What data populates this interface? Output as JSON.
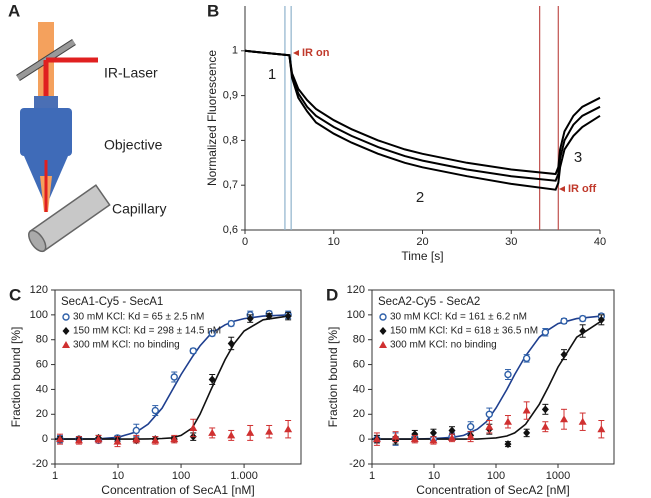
{
  "diagram": {
    "label": "A",
    "texts": [
      "IR-Laser",
      "Objective",
      "Capillary"
    ]
  },
  "chart_data": [
    {
      "panel": "B",
      "type": "line",
      "xlabel": "Time [s]",
      "ylabel": "Normalized Fluorescence",
      "x": [
        0,
        1,
        2,
        3,
        4,
        5,
        5.3,
        6,
        7,
        8,
        10,
        12,
        15,
        18,
        20,
        25,
        30,
        35,
        35.3,
        35.5,
        36,
        37,
        38,
        40
      ],
      "series": [
        {
          "color": "#000000",
          "values": [
            1,
            0.998,
            0.996,
            0.994,
            0.992,
            0.99,
            0.95,
            0.915,
            0.89,
            0.87,
            0.845,
            0.825,
            0.8,
            0.78,
            0.77,
            0.75,
            0.735,
            0.725,
            0.74,
            0.78,
            0.82,
            0.855,
            0.875,
            0.895
          ]
        },
        {
          "color": "#000000",
          "values": [
            1,
            0.998,
            0.996,
            0.994,
            0.992,
            0.99,
            0.945,
            0.905,
            0.875,
            0.855,
            0.83,
            0.81,
            0.785,
            0.765,
            0.755,
            0.735,
            0.72,
            0.71,
            0.725,
            0.76,
            0.8,
            0.835,
            0.855,
            0.875
          ]
        },
        {
          "color": "#000000",
          "values": [
            1,
            0.998,
            0.996,
            0.994,
            0.992,
            0.99,
            0.94,
            0.895,
            0.865,
            0.84,
            0.815,
            0.795,
            0.77,
            0.75,
            0.74,
            0.72,
            0.703,
            0.69,
            0.705,
            0.74,
            0.78,
            0.81,
            0.83,
            0.855
          ]
        }
      ],
      "xlim": [
        0,
        40
      ],
      "xticks": [
        0,
        10,
        20,
        30,
        40
      ],
      "ylim": [
        0.6,
        1.1
      ],
      "yticks": [
        {
          "value": 0.6,
          "label": "0,6"
        },
        {
          "value": 0.7,
          "label": "0,7"
        },
        {
          "value": 0.8,
          "label": "0,8"
        },
        {
          "value": 0.9,
          "label": "0,9"
        },
        1
      ],
      "vlines": [
        {
          "x": 4.5,
          "color": "#8fb3cc"
        },
        {
          "x": 5.2,
          "color": "#8fb3cc"
        },
        {
          "x": 33.2,
          "color": "#c0504d"
        },
        {
          "x": 35.3,
          "color": "#c0504d"
        }
      ],
      "annotations": [
        "1",
        "2",
        "3",
        "IR on",
        "IR off"
      ]
    },
    {
      "panel": "C",
      "type": "scatter",
      "title": "SecA1-Cy5 - SecA1",
      "xlabel": "Concentration of SecA1 [nM]",
      "ylabel": "Fraction bound [%]",
      "xscale": "log",
      "xlim": [
        1,
        8000
      ],
      "xticks": [
        1,
        10,
        100,
        {
          "value": 1000,
          "label": "1.000"
        }
      ],
      "ylim": [
        -20,
        120
      ],
      "yticks": [
        -20,
        0,
        20,
        40,
        60,
        80,
        100,
        120
      ],
      "series": [
        {
          "name": "30 mM KCl: Kd = 65 ± 2.5 nM",
          "color": "#2e5fa8",
          "marker": "circle",
          "x": [
            1.2,
            2.4,
            4.9,
            9.8,
            19.5,
            39,
            78,
            156,
            312,
            625,
            1250,
            2500,
            5000
          ],
          "values": [
            0,
            0,
            -1,
            1,
            7,
            23,
            50,
            71,
            85,
            93,
            100,
            101,
            100
          ],
          "errors": [
            3,
            2,
            2,
            2,
            5,
            4,
            4,
            2,
            2,
            2,
            3,
            2,
            3
          ]
        },
        {
          "name": "150 mM KCl: Kd = 298 ± 14.5 nM",
          "color": "#111111",
          "marker": "diamond",
          "x": [
            1.2,
            2.4,
            4.9,
            9.8,
            19.5,
            39,
            78,
            156,
            312,
            625,
            1250,
            2500,
            5000
          ],
          "values": [
            0,
            0,
            1,
            0,
            -1,
            0,
            0,
            2,
            48,
            77,
            97,
            99,
            99
          ],
          "errors": [
            2,
            2,
            2,
            2,
            2,
            2,
            2,
            3,
            4,
            5,
            3,
            2,
            3
          ]
        },
        {
          "name": "300 mM KCl: no binding",
          "color": "#d03030",
          "marker": "triangle",
          "x": [
            1.2,
            2.4,
            4.9,
            9.8,
            19.5,
            39,
            78,
            156,
            312,
            625,
            1250,
            2500,
            5000
          ],
          "values": [
            0,
            -1,
            0,
            -2,
            0,
            -1,
            0,
            9,
            5,
            3,
            5,
            6,
            8
          ],
          "errors": [
            4,
            3,
            3,
            4,
            3,
            3,
            3,
            7,
            4,
            4,
            6,
            5,
            7
          ]
        }
      ],
      "fits": [
        {
          "color": "#1f3f8f",
          "x": [
            1,
            5,
            10,
            20,
            30,
            50,
            70,
            100,
            150,
            200,
            300,
            500,
            700,
            1000,
            2000,
            5000
          ],
          "values": [
            0,
            0.3,
            1.5,
            6,
            12,
            25,
            38,
            52,
            66,
            75,
            85,
            92,
            95,
            97,
            99,
            100
          ]
        },
        {
          "color": "#111111",
          "x": [
            1,
            5,
            10,
            20,
            30,
            50,
            70,
            100,
            150,
            200,
            300,
            500,
            700,
            1000,
            2000,
            5000
          ],
          "values": [
            0,
            0,
            0,
            0,
            0.2,
            0.5,
            1,
            3,
            9,
            20,
            40,
            64,
            77,
            87,
            96,
            99
          ]
        }
      ]
    },
    {
      "panel": "D",
      "type": "scatter",
      "title": "SecA2-Cy5 - SecA2",
      "xlabel": "Concentration of SecA2 [nM]",
      "ylabel": "Fraction bound [%]",
      "xscale": "log",
      "xlim": [
        1,
        8000
      ],
      "xticks": [
        1,
        10,
        100,
        1000
      ],
      "ylim": [
        -20,
        120
      ],
      "yticks": [
        -20,
        0,
        20,
        40,
        60,
        80,
        100,
        120
      ],
      "series": [
        {
          "name": "30 mM KCl: Kd = 161 ± 6.2 nM",
          "color": "#2e5fa8",
          "marker": "circle",
          "x": [
            1.2,
            2.4,
            4.9,
            9.8,
            19.5,
            39,
            78,
            156,
            312,
            625,
            1250,
            2500,
            5000
          ],
          "values": [
            0,
            0,
            1,
            0,
            2,
            10,
            20,
            52,
            65,
            86,
            95,
            97,
            99
          ],
          "errors": [
            3,
            5,
            3,
            2,
            3,
            4,
            5,
            4,
            3,
            3,
            2,
            2,
            2
          ]
        },
        {
          "name": "150 mM KCl: Kd = 618 ± 36.5 nM",
          "color": "#111111",
          "marker": "diamond",
          "x": [
            1.2,
            2.4,
            4.9,
            9.8,
            19.5,
            39,
            78,
            156,
            312,
            625,
            1250,
            2500,
            5000
          ],
          "values": [
            0,
            -1,
            4,
            5,
            7,
            3,
            8,
            -4,
            5,
            24,
            68,
            87,
            96
          ],
          "errors": [
            3,
            3,
            3,
            3,
            3,
            3,
            4,
            2,
            3,
            4,
            4,
            5,
            4
          ]
        },
        {
          "name": "300 mM KCl: no binding",
          "color": "#d03030",
          "marker": "triangle",
          "x": [
            1.2,
            2.4,
            4.9,
            9.8,
            19.5,
            39,
            78,
            156,
            312,
            625,
            1250,
            2500,
            5000
          ],
          "values": [
            0,
            2,
            0,
            -1,
            1,
            2,
            10,
            14,
            23,
            10,
            16,
            14,
            8
          ],
          "errors": [
            5,
            4,
            3,
            3,
            3,
            4,
            5,
            5,
            7,
            4,
            8,
            7,
            7
          ]
        }
      ],
      "fits": [
        {
          "color": "#1f3f8f",
          "x": [
            1,
            5,
            10,
            20,
            30,
            50,
            70,
            100,
            150,
            200,
            300,
            500,
            700,
            1000,
            2000,
            5000
          ],
          "values": [
            0,
            0,
            0.5,
            1.5,
            3,
            8,
            14,
            25,
            40,
            52,
            67,
            82,
            88,
            93,
            97,
            99
          ]
        },
        {
          "color": "#111111",
          "x": [
            1,
            5,
            10,
            20,
            30,
            50,
            70,
            100,
            150,
            200,
            300,
            500,
            700,
            1000,
            2000,
            5000
          ],
          "values": [
            0,
            0,
            0,
            0,
            0,
            0,
            0.5,
            1,
            2.5,
            5,
            12,
            28,
            42,
            58,
            82,
            95
          ]
        }
      ]
    }
  ]
}
